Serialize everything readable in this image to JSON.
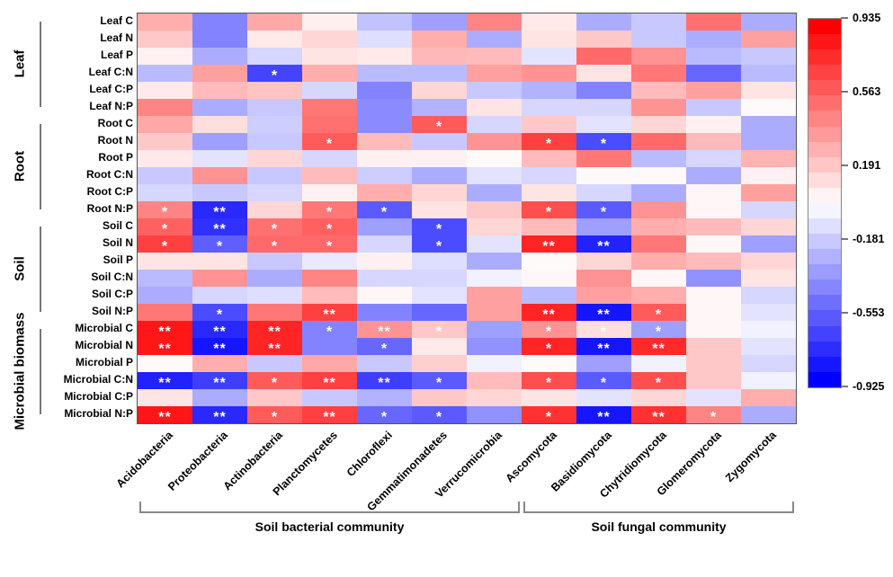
{
  "chart_data": {
    "type": "heatmap",
    "title": "",
    "rows": [
      "Leaf C",
      "Leaf N",
      "Leaf P",
      "Leaf C:N",
      "Leaf C:P",
      "Leaf N:P",
      "Root C",
      "Root N",
      "Root P",
      "Root C:N",
      "Root C:P",
      "Root N:P",
      "Soil C",
      "Soil N",
      "Soil P",
      "Soil C:N",
      "Soil C:P",
      "Soil N:P",
      "Microbial C",
      "Microbial N",
      "Microbial P",
      "Microbial C:N",
      "Microbial C:P",
      "Microbial N:P"
    ],
    "columns": [
      "Acidobacteria",
      "Proteobacteria",
      "Actinobacteria",
      "Planctomycetes",
      "Chloroflexi",
      "Gemmatimonadetes",
      "Verrucomicrobia",
      "Ascomycota",
      "Basidiomycota",
      "Chytridiomycota",
      "Glomeromycota",
      "Zygomycota"
    ],
    "row_groups": [
      {
        "label": "Leaf",
        "start": 0,
        "end": 5
      },
      {
        "label": "Root",
        "start": 6,
        "end": 11
      },
      {
        "label": "Soil",
        "start": 12,
        "end": 17
      },
      {
        "label": "Microbial biomass",
        "start": 18,
        "end": 23
      }
    ],
    "column_groups": [
      {
        "label": "Soil bacterial community",
        "start": 0,
        "end": 6
      },
      {
        "label": "Soil fungal community",
        "start": 7,
        "end": 11
      }
    ],
    "values": [
      [
        0.3,
        -0.45,
        0.32,
        0.06,
        -0.22,
        -0.35,
        0.45,
        0.08,
        -0.3,
        -0.2,
        0.52,
        -0.3
      ],
      [
        0.2,
        -0.45,
        0.08,
        0.15,
        -0.12,
        0.3,
        -0.3,
        0.1,
        0.2,
        -0.2,
        -0.3,
        0.35
      ],
      [
        0.05,
        -0.3,
        -0.15,
        0.1,
        0.08,
        0.26,
        0.25,
        -0.1,
        0.55,
        0.4,
        -0.25,
        -0.2
      ],
      [
        -0.25,
        0.35,
        -0.68,
        0.3,
        -0.25,
        -0.25,
        0.35,
        0.4,
        0.1,
        0.5,
        -0.55,
        -0.25
      ],
      [
        0.08,
        0.25,
        0.22,
        -0.15,
        -0.45,
        0.15,
        -0.2,
        -0.28,
        -0.45,
        0.25,
        0.35,
        0.1
      ],
      [
        0.45,
        -0.3,
        -0.2,
        0.5,
        -0.42,
        -0.28,
        0.1,
        -0.15,
        -0.15,
        0.4,
        -0.2,
        0.02
      ],
      [
        0.32,
        0.12,
        -0.18,
        0.52,
        -0.42,
        0.6,
        -0.15,
        0.2,
        -0.1,
        0.15,
        0.05,
        -0.3
      ],
      [
        0.2,
        -0.35,
        -0.2,
        0.6,
        0.25,
        -0.2,
        0.4,
        0.7,
        -0.65,
        0.55,
        0.25,
        -0.3
      ],
      [
        0.08,
        -0.1,
        0.15,
        -0.15,
        0.05,
        0.05,
        0.02,
        0.25,
        0.5,
        -0.25,
        -0.15,
        0.28
      ],
      [
        -0.2,
        0.4,
        -0.2,
        0.25,
        -0.18,
        -0.3,
        -0.1,
        -0.15,
        0.02,
        0.02,
        -0.3,
        0.05
      ],
      [
        -0.15,
        -0.2,
        -0.15,
        0.05,
        0.3,
        0.15,
        -0.3,
        0.1,
        -0.15,
        -0.3,
        0.03,
        0.35
      ],
      [
        0.45,
        -0.78,
        0.15,
        0.5,
        -0.6,
        0.1,
        0.2,
        0.65,
        -0.6,
        0.4,
        0.03,
        -0.15
      ],
      [
        0.58,
        -0.75,
        0.52,
        0.58,
        -0.35,
        -0.65,
        0.15,
        0.25,
        -0.35,
        0.3,
        0.25,
        0.15
      ],
      [
        0.7,
        -0.58,
        0.55,
        0.55,
        -0.15,
        -0.65,
        -0.1,
        0.8,
        -0.8,
        0.5,
        0.03,
        -0.35
      ],
      [
        0.1,
        0.1,
        -0.2,
        -0.08,
        0.05,
        -0.12,
        -0.3,
        0.02,
        0.15,
        0.3,
        0.25,
        0.15
      ],
      [
        -0.25,
        0.4,
        -0.3,
        0.45,
        -0.15,
        -0.15,
        -0.05,
        0.03,
        0.4,
        0.03,
        -0.4,
        0.1
      ],
      [
        -0.3,
        -0.15,
        -0.12,
        0.25,
        0.03,
        -0.1,
        0.35,
        -0.25,
        0.35,
        0.3,
        0.03,
        -0.15
      ],
      [
        0.5,
        -0.65,
        0.5,
        0.7,
        -0.45,
        -0.55,
        0.35,
        0.8,
        -0.85,
        0.6,
        0.03,
        -0.1
      ],
      [
        0.85,
        -0.78,
        0.8,
        -0.45,
        0.4,
        0.2,
        -0.35,
        0.4,
        0.12,
        -0.35,
        0.03,
        -0.05
      ],
      [
        0.85,
        -0.85,
        0.8,
        -0.45,
        -0.55,
        0.08,
        -0.4,
        0.8,
        -0.85,
        0.78,
        0.2,
        -0.1
      ],
      [
        0.02,
        0.3,
        -0.2,
        0.32,
        -0.2,
        0.18,
        -0.05,
        0.02,
        -0.35,
        -0.05,
        0.2,
        -0.15
      ],
      [
        -0.8,
        -0.7,
        0.6,
        0.7,
        -0.7,
        -0.6,
        0.25,
        0.65,
        -0.6,
        0.65,
        0.2,
        -0.05
      ],
      [
        0.1,
        -0.3,
        0.2,
        -0.2,
        -0.28,
        0.2,
        0.15,
        0.1,
        -0.1,
        0.15,
        -0.1,
        0.3
      ],
      [
        0.85,
        -0.78,
        0.6,
        0.7,
        -0.55,
        -0.6,
        -0.4,
        0.75,
        -0.85,
        0.75,
        0.45,
        -0.3
      ]
    ],
    "significance": [
      [
        "",
        "",
        "",
        "",
        "",
        "",
        "",
        "",
        "",
        "",
        "",
        ""
      ],
      [
        "",
        "",
        "",
        "",
        "",
        "",
        "",
        "",
        "",
        "",
        "",
        ""
      ],
      [
        "",
        "",
        "",
        "",
        "",
        "",
        "",
        "",
        "",
        "",
        "",
        ""
      ],
      [
        "",
        "",
        "*",
        "",
        "",
        "",
        "",
        "",
        "",
        "",
        "",
        ""
      ],
      [
        "",
        "",
        "",
        "",
        "",
        "",
        "",
        "",
        "",
        "",
        "",
        ""
      ],
      [
        "",
        "",
        "",
        "",
        "",
        "",
        "",
        "",
        "",
        "",
        "",
        ""
      ],
      [
        "",
        "",
        "",
        "",
        "",
        "*",
        "",
        "",
        "",
        "",
        "",
        ""
      ],
      [
        "",
        "",
        "",
        "*",
        "",
        "",
        "",
        "*",
        "*",
        "",
        "",
        ""
      ],
      [
        "",
        "",
        "",
        "",
        "",
        "",
        "",
        "",
        "",
        "",
        "",
        ""
      ],
      [
        "",
        "",
        "",
        "",
        "",
        "",
        "",
        "",
        "",
        "",
        "",
        ""
      ],
      [
        "",
        "",
        "",
        "",
        "",
        "",
        "",
        "",
        "",
        "",
        "",
        ""
      ],
      [
        "*",
        "**",
        "",
        "*",
        "*",
        "",
        "",
        "*",
        "*",
        "",
        "",
        ""
      ],
      [
        "*",
        "**",
        "*",
        "*",
        "",
        "*",
        "",
        "",
        "",
        "",
        "",
        ""
      ],
      [
        "*",
        "*",
        "*",
        "*",
        "",
        "*",
        "",
        "**",
        "**",
        "",
        "",
        ""
      ],
      [
        "",
        "",
        "",
        "",
        "",
        "",
        "",
        "",
        "",
        "",
        "",
        ""
      ],
      [
        "",
        "",
        "",
        "",
        "",
        "",
        "",
        "",
        "",
        "",
        "",
        ""
      ],
      [
        "",
        "",
        "",
        "",
        "",
        "",
        "",
        "",
        "",
        "",
        "",
        ""
      ],
      [
        "",
        "*",
        "",
        "**",
        "",
        "",
        "",
        "**",
        "**",
        "*",
        "",
        ""
      ],
      [
        "**",
        "**",
        "**",
        "*",
        "**",
        "*",
        "",
        "*",
        "*",
        "*",
        "",
        ""
      ],
      [
        "**",
        "**",
        "**",
        "",
        "*",
        "",
        "",
        "*",
        "**",
        "**",
        "",
        ""
      ],
      [
        "",
        "",
        "",
        "",
        "",
        "",
        "",
        "",
        "",
        "",
        "",
        ""
      ],
      [
        "**",
        "**",
        "*",
        "**",
        "**",
        "*",
        "",
        "*",
        "*",
        "*",
        "",
        ""
      ],
      [
        "",
        "",
        "",
        "",
        "",
        "",
        "",
        "",
        "",
        "",
        "",
        ""
      ],
      [
        "**",
        "**",
        "*",
        "**",
        "*",
        "*",
        "",
        "*",
        "**",
        "**",
        "*",
        ""
      ]
    ],
    "colorbar": {
      "tick_labels": [
        "0.935",
        "0.563",
        "0.191",
        "-0.181",
        "-0.553",
        "-0.925"
      ],
      "tick_values": [
        0.935,
        0.563,
        0.191,
        -0.181,
        -0.553,
        -0.925
      ],
      "max": 0.935,
      "min": -0.925,
      "steps": 24,
      "high_color": "#FF0000",
      "mid_color": "#FFFFFF",
      "low_color": "#0000FF"
    },
    "legend_position": "right",
    "grid": false,
    "significance_mark_color": "#FFFFFF"
  }
}
